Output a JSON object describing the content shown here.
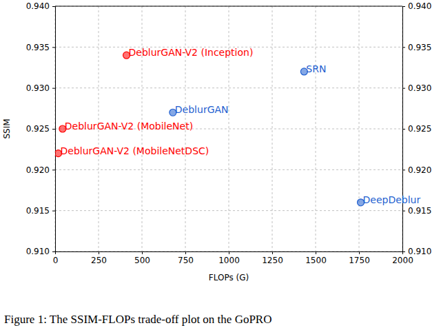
{
  "chart_data": {
    "type": "scatter",
    "x_label": "FLOPs (G)",
    "y_label": "SSIM",
    "caption": "Figure 1: The SSIM-FLOPs trade-off plot on the GoPRO",
    "x": [
      411,
      43,
      18,
      678,
      1434,
      1760
    ],
    "values": [
      0.934,
      0.925,
      0.922,
      0.927,
      0.932,
      0.916
    ],
    "annotations": [
      "DeblurGAN-V2 (Inception)",
      "DeblurGAN-V2 (MobileNet)",
      "DeblurGAN-V2 (MobileNetDSC)",
      "DeblurGAN",
      "SRN",
      "DeepDeblur"
    ],
    "colors": [
      "#ff0000",
      "#ff0000",
      "#ff0000",
      "#1f5fd0",
      "#1f5fd0",
      "#1f5fd0"
    ],
    "marker": "circle",
    "grid": true,
    "xlim": [
      0,
      2000
    ],
    "xticks": [
      0,
      250,
      500,
      750,
      1000,
      1250,
      1500,
      1750,
      2000
    ],
    "ylim": [
      0.91,
      0.94
    ],
    "yticks": [
      {
        "value": 0.91,
        "label": "0.910"
      },
      {
        "value": 0.915,
        "label": "0.915"
      },
      {
        "value": 0.92,
        "label": "0.920"
      },
      {
        "value": 0.925,
        "label": "0.925"
      },
      {
        "value": 0.93,
        "label": "0.930"
      },
      {
        "value": 0.935,
        "label": "0.935"
      },
      {
        "value": 0.94,
        "label": "0.940"
      }
    ],
    "y2lim": [
      0.91,
      0.94
    ],
    "y2ticks": [
      {
        "value": 0.91,
        "label": "0.910"
      },
      {
        "value": 0.915,
        "label": "0.915"
      },
      {
        "value": 0.92,
        "label": "0.920"
      },
      {
        "value": 0.925,
        "label": "0.925"
      },
      {
        "value": 0.93,
        "label": "0.930"
      },
      {
        "value": 0.935,
        "label": "0.935"
      },
      {
        "value": 0.94,
        "label": "0.940"
      }
    ]
  }
}
